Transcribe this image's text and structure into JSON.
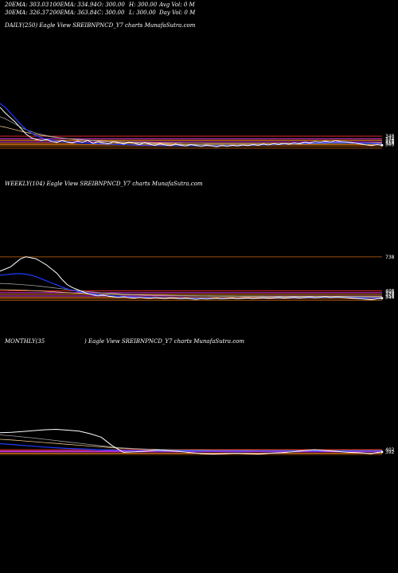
{
  "header": {
    "ema20": "20EMA: 303.03",
    "ema100": "100EMA: 334.94",
    "open": "O: 300.00",
    "high": "H: 300.00",
    "avgvol": "Avg Vol: 0  M",
    "ema30": "30EMA: 326.37",
    "ema200": "200EMA: 363.84",
    "close": "C: 300.00",
    "low": "L: 300.00",
    "dayvol": "Day Vol: 0  M"
  },
  "panels": {
    "daily_label": "DAILY(250) Eagle  View  SREIBNPNCD_Y7 charts MunafaSutra.com",
    "weekly_label": "WEEKLY(104) Eagle  View  SREIBNPNCD_Y7 charts MunafaSutra.com",
    "monthly_label_left": "MONTHLY(35",
    "monthly_label_right": ") Eagle  View  SREIBNPNCD_Y7 charts MunafaSutra.com"
  },
  "colors": {
    "price": "#ffffff",
    "ema_fast": "#1e3cff",
    "ema_slow": "#a0a0a0",
    "ema_long": "#e8c080",
    "level_orange": "#ff8c1a",
    "level_magenta": "#ff40ff",
    "level_red": "#ff3030",
    "level_brown": "#b05a10"
  },
  "chart_data": [
    {
      "type": "line",
      "name": "daily",
      "ylim": [
        260,
        520
      ],
      "price": [
        500,
        470,
        445,
        420,
        390,
        360,
        340,
        330,
        325,
        330,
        320,
        315,
        325,
        318,
        312,
        322,
        316,
        326,
        310,
        318,
        312,
        308,
        318,
        312,
        306,
        316,
        310,
        304,
        312,
        306,
        300,
        308,
        302,
        298,
        306,
        300,
        296,
        304,
        298,
        294,
        300,
        296,
        292,
        298,
        294,
        300,
        296,
        302,
        298,
        304,
        300,
        306,
        302,
        308,
        304,
        310,
        306,
        312,
        308,
        316,
        312,
        320,
        316,
        322,
        318,
        324,
        320,
        318,
        314,
        310,
        306,
        302,
        298,
        304,
        300
      ],
      "ema_fast": [
        520,
        500,
        470,
        440,
        410,
        385,
        365,
        350,
        340,
        332,
        326,
        322,
        318,
        316,
        314,
        312,
        311,
        310,
        309,
        308,
        307,
        306,
        305,
        304,
        303,
        302,
        301,
        300,
        300,
        299,
        299,
        298,
        298,
        298,
        297,
        297,
        297,
        297,
        297,
        297,
        297,
        297,
        297,
        298,
        298,
        298,
        299,
        299,
        300,
        300,
        301,
        302,
        303,
        304,
        305,
        306,
        307,
        308,
        309,
        310,
        311,
        312,
        313,
        314,
        315,
        315,
        315,
        314,
        313,
        312,
        311,
        310,
        309,
        308,
        307
      ],
      "ema_slow": [
        450,
        440,
        425,
        410,
        395,
        382,
        372,
        364,
        357,
        351,
        346,
        342,
        338,
        335,
        332,
        330,
        328,
        326,
        324,
        322,
        320,
        318,
        317,
        315,
        314,
        313,
        312,
        311,
        310,
        309,
        308,
        307,
        307,
        306,
        305,
        305,
        304,
        304,
        303,
        303,
        303,
        302,
        302,
        302,
        302,
        302,
        302,
        302,
        302,
        303,
        303,
        303,
        304,
        304,
        305,
        305,
        306,
        306,
        307,
        307,
        308,
        308,
        309,
        309,
        310,
        310,
        310,
        310,
        310,
        310,
        309,
        309,
        309,
        308,
        308
      ],
      "ema_long": [
        400,
        395,
        388,
        381,
        374,
        368,
        362,
        357,
        352,
        348,
        344,
        341,
        338,
        335,
        333,
        331,
        329,
        327,
        325,
        324,
        322,
        321,
        320,
        319,
        318,
        317,
        316,
        315,
        315,
        314,
        313,
        313,
        312,
        312,
        311,
        311,
        310,
        310,
        310,
        310,
        309,
        309,
        309,
        309,
        309,
        309,
        309,
        309,
        309,
        309,
        309,
        309,
        309,
        310,
        310,
        310,
        310,
        310,
        311,
        311,
        311,
        311,
        312,
        312,
        312,
        312,
        312,
        312,
        312,
        312,
        312,
        312,
        312,
        312,
        312
      ],
      "levels": [
        {
          "value": 348,
          "label": "348",
          "color": "level_red"
        },
        {
          "value": 334,
          "label": "334",
          "color": "level_magenta"
        },
        {
          "value": 326,
          "label": "326",
          "color": "level_orange"
        },
        {
          "value": 318,
          "label": "318",
          "color": "level_magenta"
        },
        {
          "value": 310,
          "label": "310",
          "color": "level_orange"
        },
        {
          "value": 303,
          "label": "303",
          "color": "level_orange"
        },
        {
          "value": 295,
          "label": "",
          "color": "level_brown"
        },
        {
          "value": 285,
          "label": "",
          "color": "level_brown"
        }
      ]
    },
    {
      "type": "line",
      "name": "weekly",
      "ylim": [
        280,
        760
      ],
      "price": [
        600,
        620,
        640,
        680,
        720,
        740,
        730,
        720,
        690,
        660,
        620,
        580,
        520,
        470,
        440,
        420,
        400,
        380,
        370,
        360,
        365,
        355,
        350,
        345,
        350,
        342,
        338,
        345,
        340,
        336,
        342,
        338,
        334,
        340,
        336,
        332,
        336,
        330,
        326,
        332,
        328,
        332,
        336,
        330,
        334,
        338,
        332,
        336,
        340,
        334,
        338,
        342,
        336,
        340,
        344,
        338,
        342,
        346,
        340,
        344,
        348,
        342,
        346,
        350,
        344,
        348,
        346,
        342,
        338,
        334,
        330,
        326,
        322,
        330,
        336
      ],
      "ema_fast": [
        560,
        565,
        570,
        575,
        575,
        570,
        560,
        545,
        525,
        505,
        485,
        465,
        445,
        428,
        414,
        402,
        392,
        384,
        377,
        371,
        366,
        362,
        358,
        355,
        352,
        350,
        348,
        346,
        345,
        343,
        342,
        341,
        340,
        339,
        338,
        338,
        337,
        337,
        336,
        336,
        336,
        336,
        336,
        336,
        336,
        336,
        336,
        337,
        337,
        337,
        338,
        338,
        338,
        339,
        339,
        340,
        340,
        341,
        341,
        342,
        342,
        343,
        343,
        344,
        344,
        344,
        344,
        343,
        342,
        341,
        340,
        339,
        338,
        338,
        338
      ],
      "ema_slow": [
        480,
        478,
        476,
        473,
        470,
        466,
        462,
        457,
        452,
        446,
        440,
        434,
        428,
        422,
        416,
        410,
        405,
        400,
        396,
        392,
        388,
        385,
        382,
        379,
        377,
        375,
        373,
        371,
        369,
        368,
        366,
        365,
        364,
        363,
        362,
        361,
        360,
        359,
        358,
        358,
        357,
        356,
        356,
        355,
        355,
        354,
        354,
        353,
        353,
        353,
        352,
        352,
        352,
        352,
        351,
        351,
        351,
        351,
        351,
        351,
        351,
        350,
        350,
        350,
        350,
        350,
        350,
        350,
        350,
        350,
        349,
        349,
        349,
        349,
        349
      ],
      "ema_long": [
        420,
        419,
        418,
        417,
        415,
        413,
        411,
        409,
        406,
        403,
        400,
        397,
        394,
        391,
        388,
        386,
        384,
        382,
        380,
        378,
        376,
        375,
        373,
        372,
        371,
        370,
        369,
        368,
        367,
        366,
        365,
        365,
        364,
        363,
        363,
        362,
        362,
        361,
        361,
        360,
        360,
        360,
        359,
        359,
        359,
        359,
        358,
        358,
        358,
        358,
        358,
        358,
        357,
        357,
        357,
        357,
        357,
        357,
        357,
        357,
        357,
        357,
        357,
        356,
        356,
        356,
        356,
        356,
        356,
        356,
        356,
        356,
        356,
        356,
        356
      ],
      "levels": [
        {
          "value": 738,
          "label": "738",
          "color": "level_brown"
        },
        {
          "value": 408,
          "label": "408",
          "color": "level_red"
        },
        {
          "value": 390,
          "label": "390",
          "color": "level_magenta"
        },
        {
          "value": 374,
          "label": "374",
          "color": "level_orange"
        },
        {
          "value": 358,
          "label": "358",
          "color": "level_magenta"
        },
        {
          "value": 344,
          "label": "344",
          "color": "level_orange"
        },
        {
          "value": 330,
          "label": "",
          "color": "level_brown"
        },
        {
          "value": 316,
          "label": "",
          "color": "level_brown"
        }
      ]
    },
    {
      "type": "line",
      "name": "monthly",
      "ylim": [
        340,
        560
      ],
      "price": [
        480,
        482,
        486,
        490,
        494,
        496,
        492,
        488,
        476,
        460,
        420,
        390,
        392,
        396,
        400,
        398,
        394,
        388,
        384,
        382,
        384,
        386,
        384,
        382,
        386,
        388,
        392,
        398,
        402,
        398,
        394,
        390,
        388,
        384,
        392
      ],
      "ema_fast": [
        430,
        426,
        422,
        418,
        414,
        411,
        408,
        406,
        404,
        402,
        400,
        399,
        398,
        398,
        397,
        397,
        397,
        397,
        396,
        396,
        396,
        396,
        396,
        396,
        396,
        396,
        396,
        396,
        396,
        396,
        396,
        396,
        396,
        396,
        396
      ],
      "ema_slow": [
        470,
        466,
        461,
        456,
        450,
        444,
        438,
        432,
        426,
        420,
        414,
        410,
        407,
        405,
        403,
        402,
        401,
        400,
        400,
        399,
        399,
        399,
        398,
        398,
        398,
        398,
        398,
        398,
        398,
        398,
        398,
        398,
        398,
        398,
        398
      ],
      "ema_long": [
        450,
        447,
        443,
        439,
        435,
        431,
        427,
        423,
        419,
        415,
        411,
        408,
        406,
        404,
        403,
        402,
        401,
        400,
        400,
        399,
        399,
        399,
        399,
        398,
        398,
        398,
        398,
        398,
        398,
        398,
        398,
        398,
        398,
        398,
        398
      ],
      "levels": [
        {
          "value": 402,
          "label": "402",
          "color": "level_red"
        },
        {
          "value": 396,
          "label": "",
          "color": "level_magenta"
        },
        {
          "value": 392,
          "label": "392",
          "color": "level_magenta"
        },
        {
          "value": 386,
          "label": "",
          "color": "level_orange"
        },
        {
          "value": 380,
          "label": "",
          "color": "level_brown"
        }
      ]
    }
  ]
}
